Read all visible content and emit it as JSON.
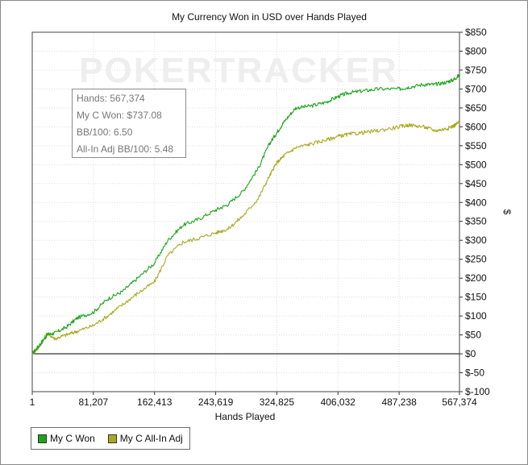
{
  "chart_data": {
    "type": "line",
    "title": "My Currency Won in USD over Hands Played",
    "xlabel": "Hands Played",
    "ylabel": "$",
    "xlim": [
      1,
      567374
    ],
    "ylim": [
      -100,
      850
    ],
    "x_ticks": [
      "1",
      "81,207",
      "162,413",
      "243,619",
      "324,825",
      "406,032",
      "487,238",
      "567,374"
    ],
    "y_ticks": [
      "$850",
      "$800",
      "$750",
      "$700",
      "$650",
      "$600",
      "$550",
      "$500",
      "$450",
      "$400",
      "$350",
      "$300",
      "$250",
      "$200",
      "$150",
      "$100",
      "$50",
      "$0",
      "$-50",
      "$-100"
    ],
    "grid": true,
    "legend_position": "bottom-left",
    "watermark": "POKERTRACKER",
    "series": [
      {
        "name": "My C Won",
        "color": "#1aa51a",
        "x": [
          1,
          10000,
          20000,
          30000,
          45000,
          60000,
          81207,
          100000,
          120000,
          140000,
          162413,
          180000,
          200000,
          220000,
          243619,
          260000,
          280000,
          300000,
          315000,
          324825,
          335000,
          350000,
          370000,
          390000,
          406032,
          420000,
          440000,
          460000,
          487238,
          500000,
          520000,
          535000,
          550000,
          560000,
          567374
        ],
        "values": [
          0,
          25,
          50,
          55,
          70,
          95,
          110,
          145,
          165,
          200,
          240,
          300,
          340,
          355,
          380,
          395,
          430,
          490,
          555,
          585,
          615,
          650,
          655,
          665,
          680,
          690,
          695,
          700,
          700,
          705,
          712,
          712,
          718,
          725,
          737.08
        ]
      },
      {
        "name": "My C All-In Adj",
        "color": "#aaa820",
        "x": [
          1,
          10000,
          20000,
          30000,
          45000,
          60000,
          81207,
          100000,
          120000,
          140000,
          162413,
          180000,
          200000,
          220000,
          243619,
          260000,
          280000,
          300000,
          315000,
          324825,
          335000,
          350000,
          370000,
          390000,
          406032,
          420000,
          440000,
          460000,
          487238,
          500000,
          520000,
          535000,
          550000,
          560000,
          567374
        ],
        "values": [
          0,
          20,
          55,
          40,
          50,
          60,
          75,
          100,
          130,
          160,
          190,
          260,
          295,
          305,
          320,
          330,
          365,
          410,
          470,
          505,
          525,
          545,
          555,
          565,
          575,
          580,
          585,
          590,
          600,
          605,
          600,
          590,
          595,
          603,
          613
        ]
      }
    ]
  },
  "tooltip": {
    "hands": "Hands: 567,374",
    "won": "My C Won: $737.08",
    "bb100": "BB/100: 6.50",
    "allin_bb100": "All-In Adj BB/100: 5.48"
  },
  "legend": {
    "items": [
      {
        "label": "My C Won",
        "color": "#1aa51a"
      },
      {
        "label": "My C All-In Adj",
        "color": "#aaa820"
      }
    ]
  }
}
